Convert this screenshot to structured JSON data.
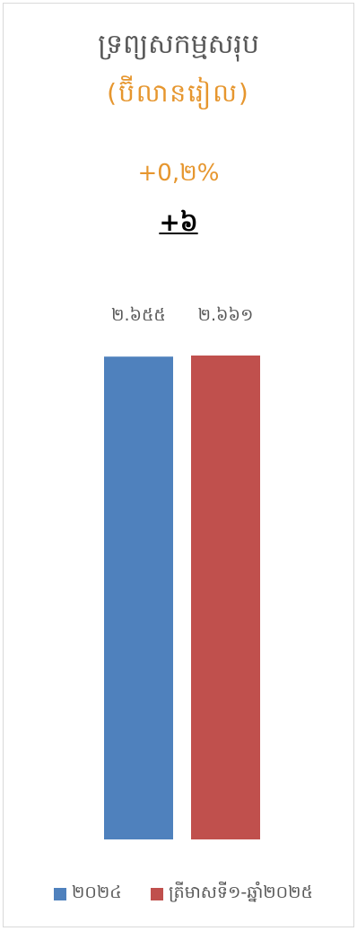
{
  "chart_data": {
    "type": "bar",
    "title": "ទ្រព្យសកម្មសរុប",
    "subtitle": "(ប៊ីលានរៀល)",
    "annotations": {
      "percent_change": "+0,២%",
      "absolute_change": "+៦"
    },
    "categories": [
      "២០២៤",
      "ត្រីមាសទី១-ឆ្នាំ២០២៥"
    ],
    "values": [
      2655,
      2661
    ],
    "data_labels": [
      "២.៦៥៥",
      "២.៦៦១"
    ],
    "colors": [
      "#4f81bd",
      "#c0504d"
    ],
    "legend": [
      "២០២៤",
      "ត្រីមាសទី១-ឆ្នាំ២០២៥"
    ],
    "legend_position": "bottom",
    "ylim": [
      0,
      2661
    ],
    "grid": false
  }
}
